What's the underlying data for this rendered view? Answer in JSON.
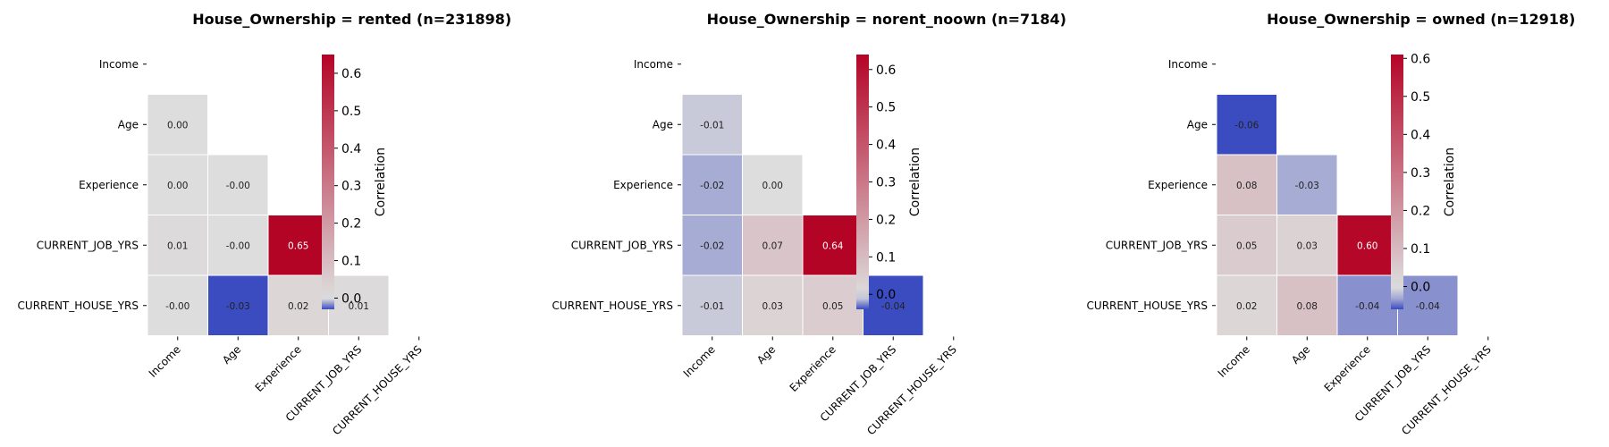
{
  "chart_data": [
    {
      "type": "heatmap",
      "title": "House_Ownership = rented (n=231898)",
      "rows": [
        "Income",
        "Age",
        "Experience",
        "CURRENT_JOB_YRS",
        "CURRENT_HOUSE_YRS"
      ],
      "columns": [
        "Income",
        "Age",
        "Experience",
        "CURRENT_JOB_YRS",
        "CURRENT_HOUSE_YRS"
      ],
      "mask": "upper-triangle-including-diagonal",
      "values": [
        [
          null,
          null,
          null,
          null,
          null
        ],
        [
          0.0,
          null,
          null,
          null,
          null
        ],
        [
          0.0,
          -0.0,
          null,
          null,
          null
        ],
        [
          0.01,
          -0.0,
          0.65,
          null,
          null
        ],
        [
          -0.0,
          -0.03,
          0.02,
          0.01,
          null
        ]
      ],
      "value_labels": [
        [
          null,
          null,
          null,
          null,
          null
        ],
        [
          "0.00",
          null,
          null,
          null,
          null
        ],
        [
          "0.00",
          "-0.00",
          null,
          null,
          null
        ],
        [
          "0.01",
          "-0.00",
          "0.65",
          null,
          null
        ],
        [
          "-0.00",
          "-0.03",
          "0.02",
          "0.01",
          null
        ]
      ],
      "colorbar": {
        "label": "Correlation",
        "range": [
          -0.03,
          0.65
        ],
        "ticks": [
          0.0,
          0.1,
          0.2,
          0.3,
          0.4,
          0.5,
          0.6
        ],
        "tick_labels": [
          "0.0",
          "0.1",
          "0.2",
          "0.3",
          "0.4",
          "0.5",
          "0.6"
        ]
      }
    },
    {
      "type": "heatmap",
      "title": "House_Ownership = norent_noown (n=7184)",
      "rows": [
        "Income",
        "Age",
        "Experience",
        "CURRENT_JOB_YRS",
        "CURRENT_HOUSE_YRS"
      ],
      "columns": [
        "Income",
        "Age",
        "Experience",
        "CURRENT_JOB_YRS",
        "CURRENT_HOUSE_YRS"
      ],
      "mask": "upper-triangle-including-diagonal",
      "values": [
        [
          null,
          null,
          null,
          null,
          null
        ],
        [
          -0.01,
          null,
          null,
          null,
          null
        ],
        [
          -0.02,
          0.0,
          null,
          null,
          null
        ],
        [
          -0.02,
          0.07,
          0.64,
          null,
          null
        ],
        [
          -0.01,
          0.03,
          0.05,
          -0.04,
          null
        ]
      ],
      "value_labels": [
        [
          null,
          null,
          null,
          null,
          null
        ],
        [
          "-0.01",
          null,
          null,
          null,
          null
        ],
        [
          "-0.02",
          "0.00",
          null,
          null,
          null
        ],
        [
          "-0.02",
          "0.07",
          "0.64",
          null,
          null
        ],
        [
          "-0.01",
          "0.03",
          "0.05",
          "-0.04",
          null
        ]
      ],
      "colorbar": {
        "label": "Correlation",
        "range": [
          -0.04,
          0.64
        ],
        "ticks": [
          0.0,
          0.1,
          0.2,
          0.3,
          0.4,
          0.5,
          0.6
        ],
        "tick_labels": [
          "0.0",
          "0.1",
          "0.2",
          "0.3",
          "0.4",
          "0.5",
          "0.6"
        ]
      }
    },
    {
      "type": "heatmap",
      "title": "House_Ownership = owned (n=12918)",
      "rows": [
        "Income",
        "Age",
        "Experience",
        "CURRENT_JOB_YRS",
        "CURRENT_HOUSE_YRS"
      ],
      "columns": [
        "Income",
        "Age",
        "Experience",
        "CURRENT_JOB_YRS",
        "CURRENT_HOUSE_YRS"
      ],
      "mask": "upper-triangle-including-diagonal",
      "values": [
        [
          null,
          null,
          null,
          null,
          null
        ],
        [
          -0.06,
          null,
          null,
          null,
          null
        ],
        [
          0.08,
          -0.03,
          null,
          null,
          null
        ],
        [
          0.05,
          0.03,
          0.6,
          null,
          null
        ],
        [
          0.02,
          0.08,
          -0.04,
          -0.04,
          null
        ]
      ],
      "value_labels": [
        [
          null,
          null,
          null,
          null,
          null
        ],
        [
          "-0.06",
          null,
          null,
          null,
          null
        ],
        [
          "0.08",
          "-0.03",
          null,
          null,
          null
        ],
        [
          "0.05",
          "0.03",
          "0.60",
          null,
          null
        ],
        [
          "0.02",
          "0.08",
          "-0.04",
          "-0.04",
          null
        ]
      ],
      "colorbar": {
        "label": "Correlation",
        "range": [
          -0.06,
          0.61
        ],
        "ticks": [
          0.0,
          0.1,
          0.2,
          0.3,
          0.4,
          0.5,
          0.6
        ],
        "tick_labels": [
          "0.0",
          "0.1",
          "0.2",
          "0.3",
          "0.4",
          "0.5",
          "0.6"
        ]
      }
    }
  ],
  "colormap": {
    "name": "coolwarm-diverging",
    "center": 0,
    "stops": [
      "#3b4cc0",
      "#dddddd",
      "#b40426"
    ]
  }
}
